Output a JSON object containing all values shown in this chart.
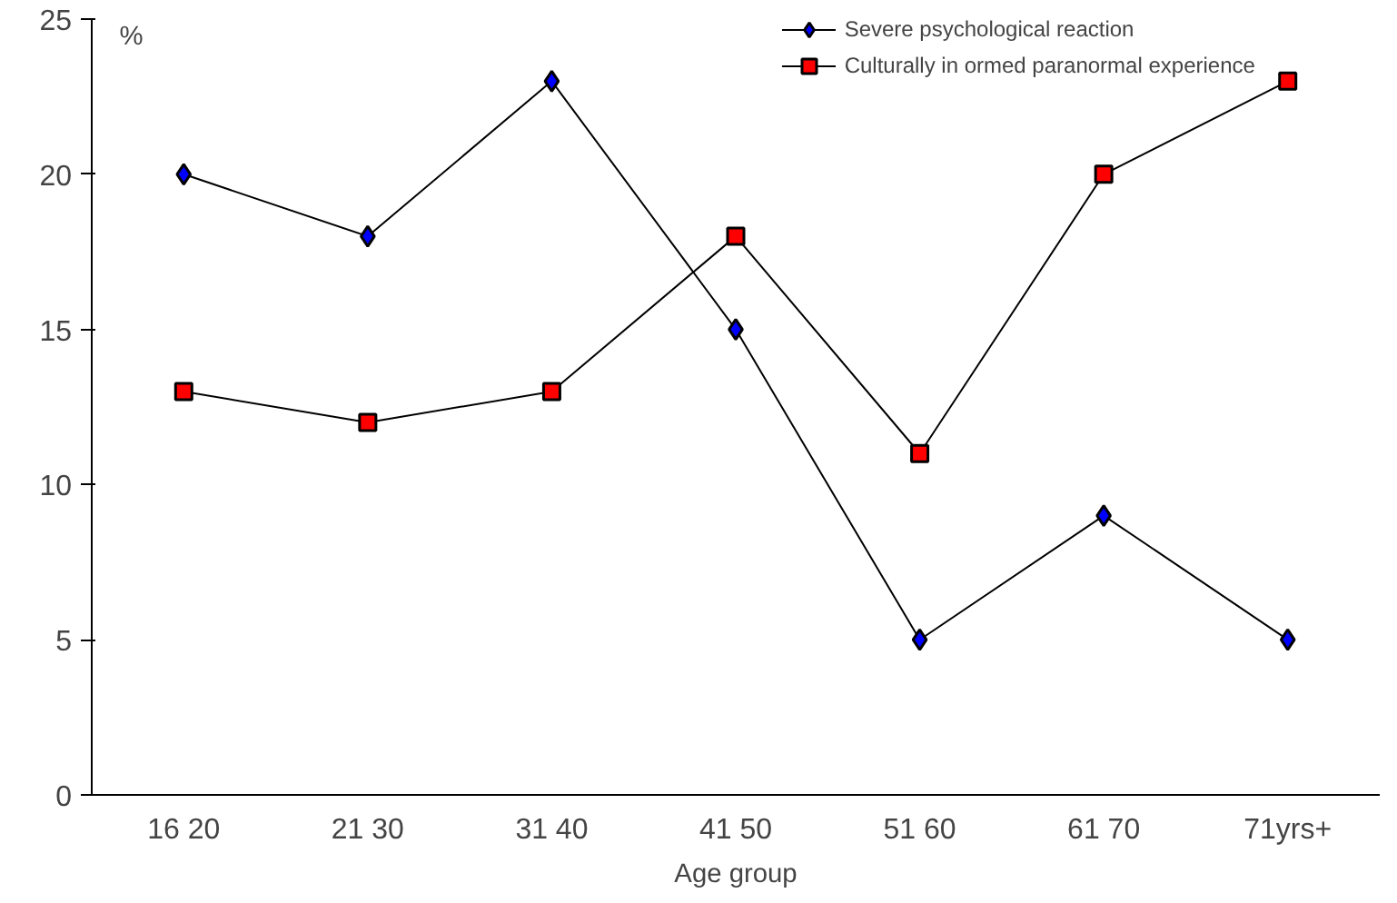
{
  "chart_data": {
    "type": "line",
    "xlabel": "Age group",
    "ylabel": "%",
    "categories": [
      "16 20",
      "21 30",
      "31 40",
      "41 50",
      "51 60",
      "61 70",
      "71yrs+"
    ],
    "series": [
      {
        "name": "Severe psychological reaction",
        "color": "#0000ff",
        "marker": "diamond",
        "values": [
          20,
          18,
          23,
          15,
          5,
          9,
          5
        ]
      },
      {
        "name": "Culturally in ormed paranormal experience",
        "color": "#ff0000",
        "marker": "square",
        "values": [
          13,
          12,
          13,
          18,
          11,
          20,
          23
        ]
      }
    ],
    "ylim": [
      0,
      25
    ],
    "yticks": [
      0,
      5,
      10,
      15,
      20,
      25
    ],
    "grid": false,
    "legend": "top",
    "line_style": "solid"
  }
}
